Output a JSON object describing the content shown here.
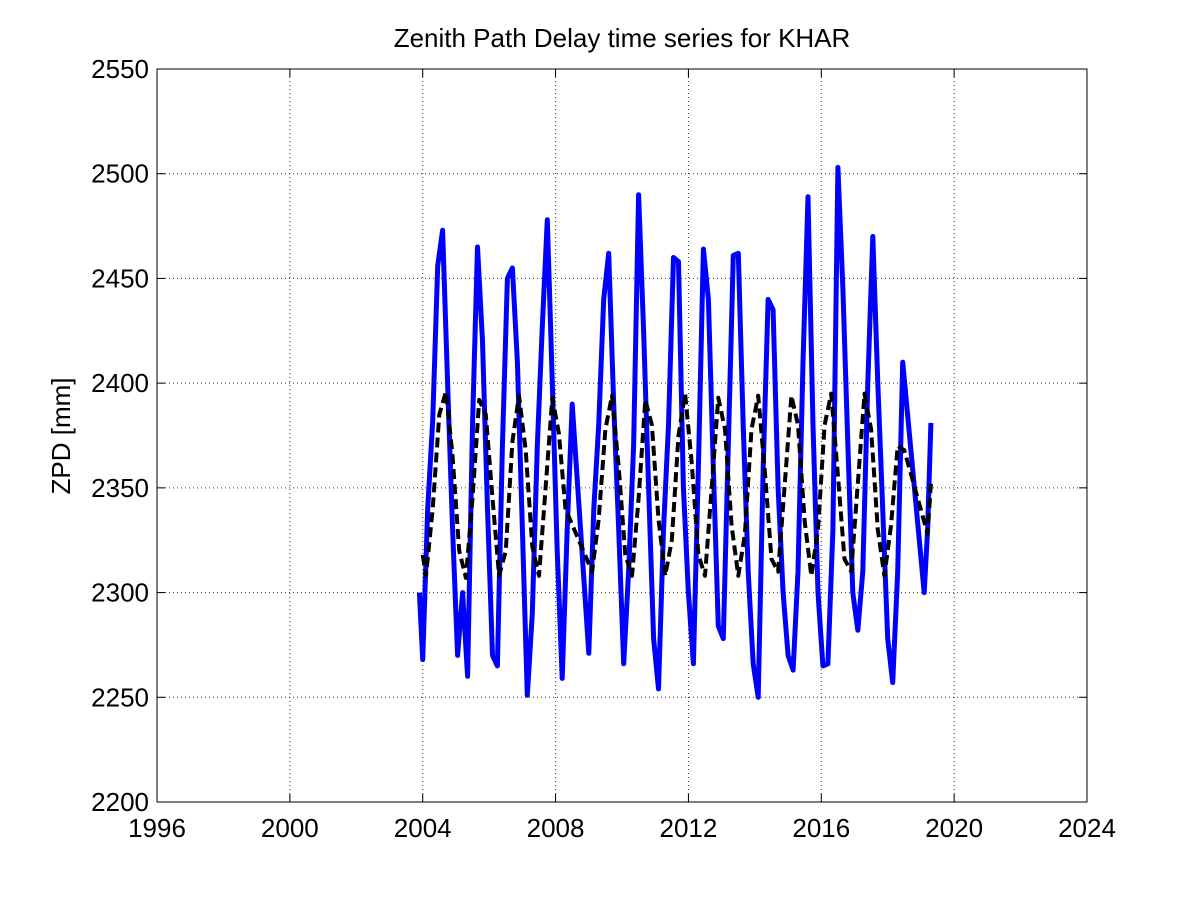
{
  "chart_data": {
    "type": "line",
    "title": "Zenith Path Delay time series for KHAR",
    "xlabel": "",
    "ylabel": "ZPD [mm]",
    "xlim": [
      1996,
      2024
    ],
    "ylim": [
      2200,
      2550
    ],
    "xticks": [
      "1996",
      "2000",
      "2004",
      "2008",
      "2012",
      "2016",
      "2020",
      "2024"
    ],
    "yticks": [
      "2200",
      "2250",
      "2300",
      "2350",
      "2400",
      "2450",
      "2500",
      "2550"
    ],
    "grid": true,
    "series": [
      {
        "style": "solid",
        "color": "#0000ff",
        "description_points": {
          "x": [
            2003.9,
            2004.0,
            2004.15,
            2004.3,
            2004.45,
            2004.6,
            2004.75,
            2004.9,
            2005.05,
            2005.2,
            2005.35,
            2005.5,
            2005.65,
            2005.8,
            2005.95,
            2006.1,
            2006.25,
            2006.4,
            2006.55,
            2006.7,
            2006.85,
            2007.0,
            2007.15,
            2007.3,
            2007.45,
            2007.6,
            2007.75,
            2007.9,
            2008.05,
            2008.2,
            2008.35,
            2008.5,
            2009.0,
            2009.15,
            2009.3,
            2009.45,
            2009.6,
            2009.75,
            2009.9,
            2010.05,
            2010.2,
            2010.35,
            2010.5,
            2010.65,
            2010.8,
            2010.95,
            2011.1,
            2011.25,
            2011.4,
            2011.55,
            2011.7,
            2011.85,
            2012.0,
            2012.15,
            2012.3,
            2012.45,
            2012.6,
            2012.75,
            2012.9,
            2013.05,
            2013.2,
            2013.35,
            2013.5,
            2013.65,
            2013.8,
            2013.95,
            2014.1,
            2014.25,
            2014.4,
            2014.55,
            2014.7,
            2014.85,
            2015.0,
            2015.15,
            2015.3,
            2015.45,
            2015.6,
            2015.75,
            2015.9,
            2016.05,
            2016.2,
            2016.35,
            2016.5,
            2016.65,
            2016.8,
            2016.95,
            2017.1,
            2017.25,
            2017.4,
            2017.55,
            2017.7,
            2017.85,
            2018.0,
            2018.15,
            2018.3,
            2018.45,
            2019.1,
            2019.2,
            2019.3
          ],
          "y": [
            2300,
            2268,
            2340,
            2382,
            2456,
            2473,
            2400,
            2330,
            2270,
            2300,
            2260,
            2380,
            2465,
            2420,
            2340,
            2270,
            2265,
            2370,
            2450,
            2455,
            2410,
            2330,
            2251,
            2290,
            2370,
            2427,
            2478,
            2400,
            2320,
            2259,
            2330,
            2390,
            2271,
            2340,
            2380,
            2440,
            2462,
            2390,
            2330,
            2266,
            2310,
            2370,
            2490,
            2425,
            2350,
            2278,
            2254,
            2330,
            2380,
            2460,
            2458,
            2350,
            2300,
            2266,
            2360,
            2464,
            2440,
            2360,
            2284,
            2278,
            2370,
            2461,
            2462,
            2380,
            2310,
            2266,
            2250,
            2360,
            2440,
            2435,
            2350,
            2300,
            2270,
            2263,
            2310,
            2410,
            2489,
            2380,
            2300,
            2265,
            2266,
            2330,
            2503,
            2445,
            2370,
            2300,
            2282,
            2310,
            2400,
            2470,
            2400,
            2340,
            2278,
            2257,
            2310,
            2410,
            2300,
            2330,
            2381
          ]
        }
      },
      {
        "style": "dashed",
        "color": "#000000",
        "description_points": {
          "x": [
            2004.0,
            2004.1,
            2004.3,
            2004.5,
            2004.7,
            2004.9,
            2005.1,
            2005.3,
            2005.5,
            2005.7,
            2005.9,
            2006.1,
            2006.3,
            2006.5,
            2006.7,
            2006.9,
            2007.1,
            2007.3,
            2007.5,
            2007.7,
            2007.9,
            2008.1,
            2008.3,
            2009.1,
            2009.3,
            2009.5,
            2009.7,
            2009.9,
            2010.1,
            2010.3,
            2010.5,
            2010.7,
            2010.9,
            2011.1,
            2011.3,
            2011.5,
            2011.7,
            2011.9,
            2012.1,
            2012.3,
            2012.5,
            2012.7,
            2012.9,
            2013.1,
            2013.3,
            2013.5,
            2013.7,
            2013.9,
            2014.1,
            2014.3,
            2014.5,
            2014.7,
            2014.9,
            2015.1,
            2015.3,
            2015.5,
            2015.7,
            2015.9,
            2016.1,
            2016.3,
            2016.5,
            2016.7,
            2016.9,
            2017.1,
            2017.3,
            2017.5,
            2017.7,
            2017.9,
            2018.1,
            2018.3,
            2018.5,
            2019.2,
            2019.3
          ],
          "y": [
            2318,
            2308,
            2340,
            2385,
            2396,
            2365,
            2320,
            2307,
            2345,
            2392,
            2385,
            2345,
            2308,
            2320,
            2372,
            2394,
            2368,
            2322,
            2308,
            2350,
            2393,
            2376,
            2340,
            2310,
            2335,
            2378,
            2394,
            2360,
            2318,
            2308,
            2345,
            2392,
            2380,
            2335,
            2308,
            2325,
            2375,
            2395,
            2362,
            2318,
            2308,
            2350,
            2393,
            2378,
            2332,
            2308,
            2328,
            2378,
            2394,
            2358,
            2316,
            2310,
            2352,
            2394,
            2380,
            2334,
            2308,
            2330,
            2380,
            2395,
            2356,
            2316,
            2310,
            2352,
            2395,
            2378,
            2330,
            2308,
            2332,
            2370,
            2368,
            2328,
            2352
          ]
        }
      }
    ]
  }
}
